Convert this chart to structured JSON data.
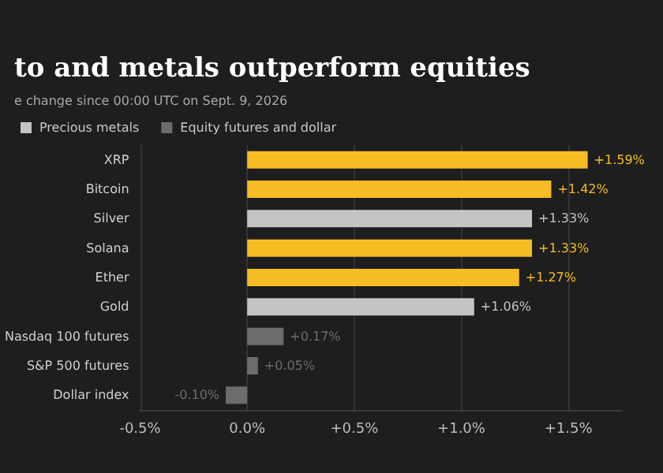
{
  "chart_data": {
    "type": "bar",
    "orientation": "horizontal",
    "title": "to and metals outperform equities",
    "subtitle": "e change since 00:00 UTC on Sept. 9, 2026",
    "categories": [
      "XRP",
      "Bitcoin",
      "Silver",
      "Solana",
      "Ether",
      "Gold",
      "Nasdaq 100 futures",
      "S&P 500 futures",
      "Dollar index"
    ],
    "series": [
      {
        "color": "#f5bd23",
        "values": [
          1.59,
          1.42,
          null,
          1.33,
          1.27,
          null,
          null,
          null,
          null
        ],
        "value_labels": [
          "+1.59%",
          "+1.42%",
          null,
          "+1.33%",
          "+1.27%",
          null,
          null,
          null,
          null
        ]
      },
      {
        "name": "Precious metals",
        "color": "#c4c4c6",
        "values": [
          null,
          null,
          1.33,
          null,
          null,
          1.06,
          null,
          null,
          null
        ],
        "value_labels": [
          null,
          null,
          "+1.33%",
          null,
          null,
          "+1.06%",
          null,
          null,
          null
        ]
      },
      {
        "name": "Equity futures and dollar",
        "color": "#6c6c6c",
        "values": [
          null,
          null,
          null,
          null,
          null,
          null,
          0.17,
          0.05,
          -0.1
        ],
        "value_labels": [
          null,
          null,
          null,
          null,
          null,
          null,
          "+0.17%",
          "+0.05%",
          "-0.10%"
        ]
      }
    ],
    "xlim": [
      -0.5,
      1.75
    ],
    "xticks": [
      {
        "value": -0.5,
        "label": "-0.5%"
      },
      {
        "value": 0,
        "label": "0.0%"
      },
      {
        "value": 0.5,
        "label": "+0.5%"
      },
      {
        "value": 1,
        "label": "+1.0%"
      },
      {
        "value": 1.5,
        "label": "+1.5%"
      }
    ],
    "grid": "x",
    "legend": "top left"
  }
}
